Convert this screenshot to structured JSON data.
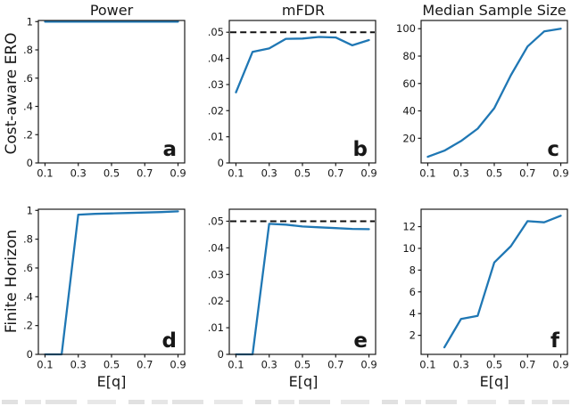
{
  "figure": {
    "col_titles": [
      "Power",
      "mFDR",
      "Median Sample Size"
    ],
    "row_labels": [
      "Cost-aware ERO",
      "Finite Horizon"
    ],
    "xlabel": "E[q]",
    "line_color": "#1f77b4",
    "dash_color": "#111111",
    "axis_color": "#1a1a1a"
  },
  "chart_data": [
    {
      "type": "line",
      "panel_label": "a",
      "row": 0,
      "col": 0,
      "title": "Power",
      "row_label": "Cost-aware ERO",
      "x": [
        0.1,
        0.2,
        0.3,
        0.4,
        0.5,
        0.6,
        0.7,
        0.8,
        0.9
      ],
      "values": [
        1.0,
        1.0,
        1.0,
        1.0,
        1.0,
        1.0,
        1.0,
        1.0,
        1.0
      ],
      "xlim": [
        0.06,
        0.94
      ],
      "ylim": [
        0,
        1.008
      ],
      "xticks": {
        "values": [
          0.1,
          0.3,
          0.5,
          0.7,
          0.9
        ],
        "labels": [
          "0.1",
          "0.3",
          "0.5",
          "0.7",
          "0.9"
        ]
      },
      "yticks": {
        "values": [
          0,
          0.2,
          0.4,
          0.6,
          0.8,
          1.0
        ],
        "labels": [
          "0",
          ".2",
          ".4",
          ".6",
          ".8",
          "1"
        ]
      },
      "grid": false,
      "legend": null
    },
    {
      "type": "line",
      "panel_label": "b",
      "row": 0,
      "col": 1,
      "title": "mFDR",
      "row_label": "Cost-aware ERO",
      "x": [
        0.1,
        0.2,
        0.3,
        0.4,
        0.5,
        0.6,
        0.7,
        0.8,
        0.9
      ],
      "values": [
        0.027,
        0.0425,
        0.0438,
        0.0475,
        0.0476,
        0.0482,
        0.048,
        0.045,
        0.047
      ],
      "dashed_y": 0.05,
      "xlim": [
        0.06,
        0.94
      ],
      "ylim": [
        0,
        0.0545
      ],
      "xticks": {
        "values": [
          0.1,
          0.3,
          0.5,
          0.7,
          0.9
        ],
        "labels": [
          "0.1",
          "0.3",
          "0.5",
          "0.7",
          "0.9"
        ]
      },
      "yticks": {
        "values": [
          0,
          0.01,
          0.02,
          0.03,
          0.04,
          0.05
        ],
        "labels": [
          "0",
          ".01",
          ".02",
          ".03",
          ".04",
          ".05"
        ]
      },
      "grid": false,
      "legend": null
    },
    {
      "type": "line",
      "panel_label": "c",
      "row": 0,
      "col": 2,
      "title": "Median Sample Size",
      "row_label": "Cost-aware ERO",
      "x": [
        0.1,
        0.2,
        0.3,
        0.4,
        0.5,
        0.6,
        0.7,
        0.8,
        0.9
      ],
      "values": [
        6.5,
        11,
        18,
        27,
        42,
        66,
        87,
        98,
        100
      ],
      "xlim": [
        0.06,
        0.94
      ],
      "ylim": [
        2,
        106
      ],
      "xticks": {
        "values": [
          0.1,
          0.3,
          0.5,
          0.7,
          0.9
        ],
        "labels": [
          "0.1",
          "0.3",
          "0.5",
          "0.7",
          "0.9"
        ]
      },
      "yticks": {
        "values": [
          20,
          40,
          60,
          80,
          100
        ],
        "labels": [
          "20",
          "40",
          "60",
          "80",
          "100"
        ]
      },
      "grid": false,
      "legend": null
    },
    {
      "type": "line",
      "panel_label": "d",
      "row": 1,
      "col": 0,
      "title": "Power",
      "row_label": "Finite Horizon",
      "x": [
        0.1,
        0.2,
        0.3,
        0.4,
        0.5,
        0.6,
        0.7,
        0.8,
        0.9
      ],
      "values": [
        0,
        0,
        0.97,
        0.976,
        0.979,
        0.982,
        0.985,
        0.988,
        0.993
      ],
      "xlim": [
        0.06,
        0.94
      ],
      "ylim": [
        0,
        1.008
      ],
      "xticks": {
        "values": [
          0.1,
          0.3,
          0.5,
          0.7,
          0.9
        ],
        "labels": [
          "0.1",
          "0.3",
          "0.5",
          "0.7",
          "0.9"
        ]
      },
      "yticks": {
        "values": [
          0,
          0.2,
          0.4,
          0.6,
          0.8,
          1.0
        ],
        "labels": [
          "0",
          ".2",
          ".4",
          ".6",
          ".8",
          "1"
        ]
      },
      "grid": false,
      "legend": null
    },
    {
      "type": "line",
      "panel_label": "e",
      "row": 1,
      "col": 1,
      "title": "mFDR",
      "row_label": "Finite Horizon",
      "x": [
        0.1,
        0.2,
        0.3,
        0.4,
        0.5,
        0.6,
        0.7,
        0.8,
        0.9
      ],
      "values": [
        0,
        0,
        0.049,
        0.0487,
        0.048,
        0.0477,
        0.0474,
        0.0471,
        0.047
      ],
      "dashed_y": 0.05,
      "xlim": [
        0.06,
        0.94
      ],
      "ylim": [
        0,
        0.0545
      ],
      "xticks": {
        "values": [
          0.1,
          0.3,
          0.5,
          0.7,
          0.9
        ],
        "labels": [
          "0.1",
          "0.3",
          "0.5",
          "0.7",
          "0.9"
        ]
      },
      "yticks": {
        "values": [
          0,
          0.01,
          0.02,
          0.03,
          0.04,
          0.05
        ],
        "labels": [
          "0",
          ".01",
          ".02",
          ".03",
          ".04",
          ".05"
        ]
      },
      "grid": false,
      "legend": null
    },
    {
      "type": "line",
      "panel_label": "f",
      "row": 1,
      "col": 2,
      "title": "Median Sample Size",
      "row_label": "Finite Horizon",
      "x": [
        0.2,
        0.3,
        0.4,
        0.5,
        0.6,
        0.7,
        0.8,
        0.9
      ],
      "values": [
        0.9,
        3.5,
        3.8,
        8.7,
        10.2,
        12.5,
        12.4,
        13.0
      ],
      "xlim": [
        0.06,
        0.94
      ],
      "ylim": [
        0.25,
        13.6
      ],
      "xticks": {
        "values": [
          0.1,
          0.3,
          0.5,
          0.7,
          0.9
        ],
        "labels": [
          "0.1",
          "0.3",
          "0.5",
          "0.7",
          "0.9"
        ]
      },
      "yticks": {
        "values": [
          2,
          4,
          6,
          8,
          10,
          12
        ],
        "labels": [
          "2",
          "4",
          "6",
          "8",
          "10",
          "12"
        ]
      },
      "grid": false,
      "legend": null
    }
  ]
}
